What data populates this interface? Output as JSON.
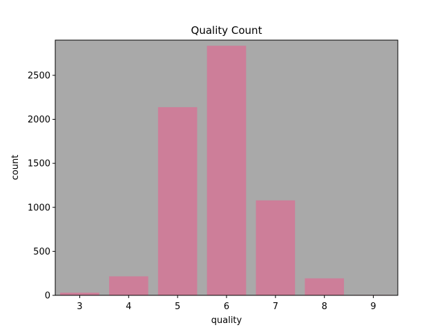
{
  "chart_data": {
    "type": "bar",
    "title": "Quality Count",
    "xlabel": "quality",
    "ylabel": "count",
    "categories": [
      "3",
      "4",
      "5",
      "6",
      "7",
      "8",
      "9"
    ],
    "values": [
      30,
      216,
      2138,
      2836,
      1079,
      193,
      5
    ],
    "ylim": [
      0,
      2900
    ],
    "yticks": [
      0,
      500,
      1000,
      1500,
      2000,
      2500
    ],
    "grid": false,
    "legend": "none",
    "colors": {
      "bar": "#cd7e99",
      "plot_background": "#a9a9a9",
      "frame": "#000000"
    }
  }
}
